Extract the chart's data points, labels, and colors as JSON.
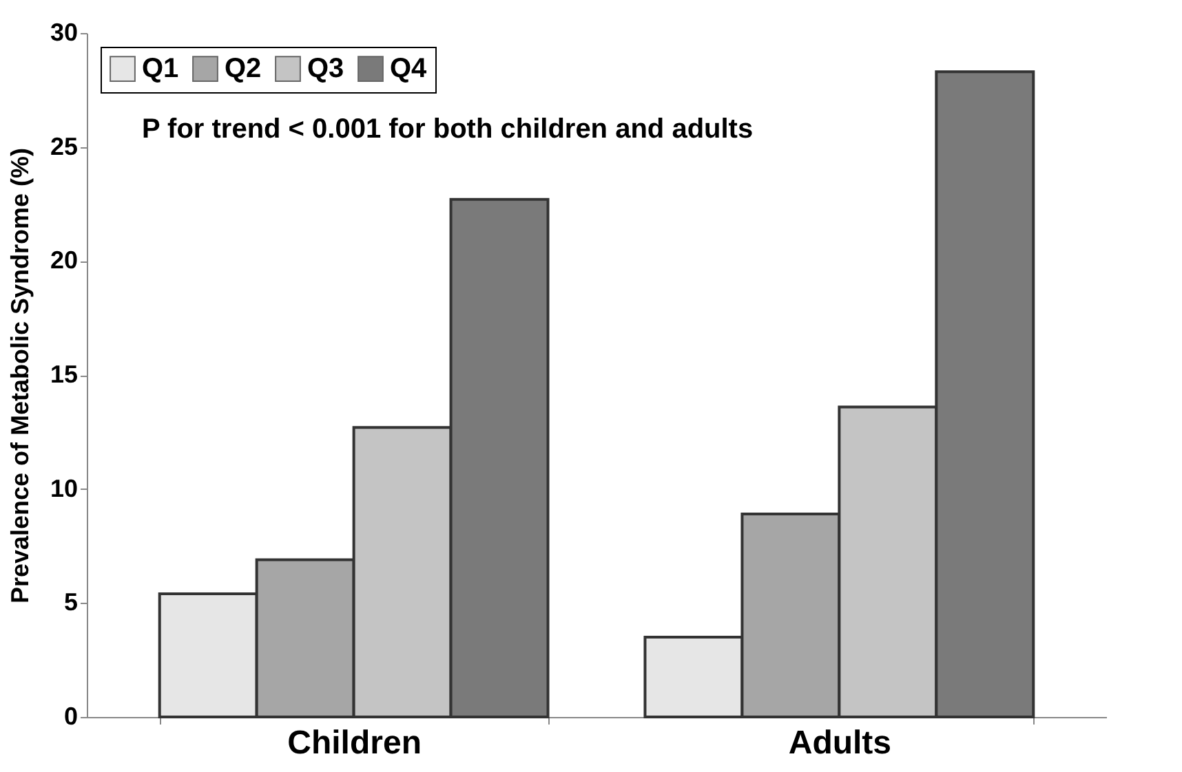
{
  "chart_data": {
    "type": "bar",
    "ylabel": "Prevalence of Metabolic Syndrome (%)",
    "categories": [
      "Children",
      "Adults"
    ],
    "series": [
      {
        "name": "Q1",
        "color": "#e6e6e6",
        "values": [
          5.4,
          3.5
        ]
      },
      {
        "name": "Q2",
        "color": "#a6a6a6",
        "values": [
          6.9,
          8.9
        ]
      },
      {
        "name": "Q3",
        "color": "#c4c4c4",
        "values": [
          12.7,
          13.6
        ]
      },
      {
        "name": "Q4",
        "color": "#7a7a7a",
        "values": [
          22.7,
          28.3
        ]
      }
    ],
    "ylim": [
      0,
      30
    ],
    "yticks": [
      0,
      5,
      10,
      15,
      20,
      25,
      30
    ],
    "grid": false,
    "legend": "top left",
    "annotations": [
      "P for trend < 0.001 for both children and adults"
    ]
  }
}
